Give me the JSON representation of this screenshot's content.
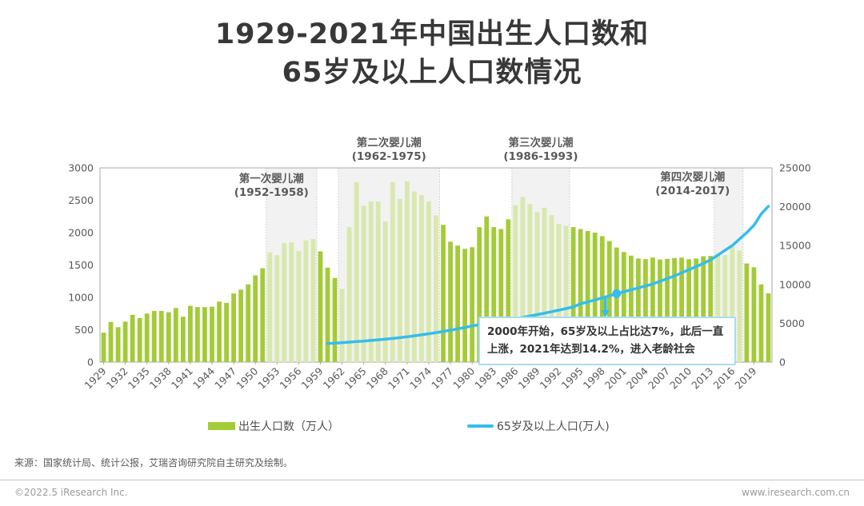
{
  "title": {
    "line1": "1929-2021年中国出生人口数和",
    "line2": "65岁及以上人口数情况"
  },
  "chart_data": {
    "type": "bar+line combo",
    "year_start": 1929,
    "year_end": 2021,
    "x_tick_years": [
      1929,
      1932,
      1935,
      1938,
      1941,
      1944,
      1947,
      1950,
      1953,
      1956,
      1959,
      1962,
      1965,
      1968,
      1971,
      1974,
      1977,
      1980,
      1983,
      1986,
      1989,
      1992,
      1995,
      1998,
      2001,
      2004,
      2007,
      2010,
      2013,
      2016,
      2019
    ],
    "left_axis": {
      "ticks": [
        0,
        500,
        1000,
        1500,
        2000,
        2500,
        3000
      ],
      "max": 3000
    },
    "right_axis": {
      "ticks": [
        0,
        5000,
        10000,
        15000,
        20000,
        25000
      ],
      "max": 25000
    },
    "series": [
      {
        "name": "出生人口数（万人）",
        "type": "bar",
        "axis": "left",
        "color": "#a3cb37",
        "color_light": "#d9e8ae",
        "values": [
          455,
          620,
          540,
          625,
          730,
          680,
          750,
          790,
          790,
          770,
          835,
          700,
          870,
          850,
          850,
          855,
          935,
          915,
          1060,
          1120,
          1200,
          1340,
          1450,
          1695,
          1650,
          1840,
          1850,
          1715,
          1880,
          1900,
          1710,
          1460,
          1300,
          1130,
          2085,
          2780,
          2415,
          2480,
          2480,
          2170,
          2780,
          2520,
          2790,
          2635,
          2580,
          2480,
          2265,
          2120,
          1860,
          1800,
          1750,
          1775,
          2085,
          2250,
          2085,
          2055,
          2205,
          2425,
          2550,
          2440,
          2315,
          2385,
          2270,
          2135,
          2105,
          2085,
          2055,
          2025,
          2000,
          1945,
          1870,
          1770,
          1700,
          1645,
          1600,
          1590,
          1615,
          1585,
          1595,
          1608,
          1615,
          1590,
          1600,
          1635,
          1640,
          1687,
          1655,
          1786,
          1723,
          1523,
          1465,
          1200,
          1062
        ]
      },
      {
        "name": "65岁及以上人口(万人)",
        "type": "line",
        "axis": "right",
        "color": "#35bdec",
        "start_year": 1960,
        "values": [
          2400,
          2450,
          2510,
          2570,
          2640,
          2710,
          2790,
          2870,
          2960,
          3050,
          3150,
          3260,
          3380,
          3510,
          3650,
          3800,
          3950,
          4110,
          4280,
          4450,
          4660,
          4820,
          4990,
          5150,
          5300,
          5450,
          5600,
          5750,
          5930,
          6110,
          6300,
          6490,
          6690,
          6890,
          7100,
          7510,
          7750,
          8000,
          8260,
          8530,
          8811,
          9050,
          9300,
          9550,
          9800,
          10055,
          10400,
          10750,
          11100,
          11490,
          11894,
          12290,
          12710,
          13160,
          13760,
          14390,
          15000,
          15830,
          16660,
          17600,
          19064,
          20056
        ]
      }
    ],
    "baby_booms": [
      {
        "label": "第一次婴儿潮",
        "range": "(1952-1958)",
        "start": 1952,
        "end": 1958
      },
      {
        "label": "第二次婴儿潮",
        "range": "(1962-1975)",
        "start": 1962,
        "end": 1975
      },
      {
        "label": "第三次婴儿潮",
        "range": "(1986-1993)",
        "start": 1986,
        "end": 1993
      },
      {
        "label": "第四次婴儿潮",
        "range": "(2014-2017)",
        "start": 2014,
        "end": 2017
      }
    ],
    "callout": {
      "text": "2000年开始，65岁及以上占比达7%，此后一直上涨，2021年达到14.2%，进入老龄社会",
      "marker_year": 2000,
      "marker_value": 8811
    },
    "grid": "none",
    "legend_position": "bottom"
  },
  "legend": {
    "items": [
      {
        "label": "出生人口数（万人）",
        "swatch": "green-bar"
      },
      {
        "label": "65岁及以上人口(万人)",
        "swatch": "blue-line"
      }
    ]
  },
  "footer": {
    "source": "来源：国家统计局、统计公报，艾瑞咨询研究院自主研究及绘制。",
    "copyright": "©2022.5 iResearch Inc.",
    "website": "www.iresearch.com.cn"
  },
  "colors": {
    "bar_green": "#a3cb37",
    "bar_green_light": "#d9e8ae",
    "line_blue": "#35bdec",
    "boom_band_fill": "#f2f2f2",
    "boom_band_edge": "#c9c9c9",
    "axis_text": "#595959",
    "plot_border": "#a9a9a9",
    "callout_border": "#a9dcf3"
  }
}
